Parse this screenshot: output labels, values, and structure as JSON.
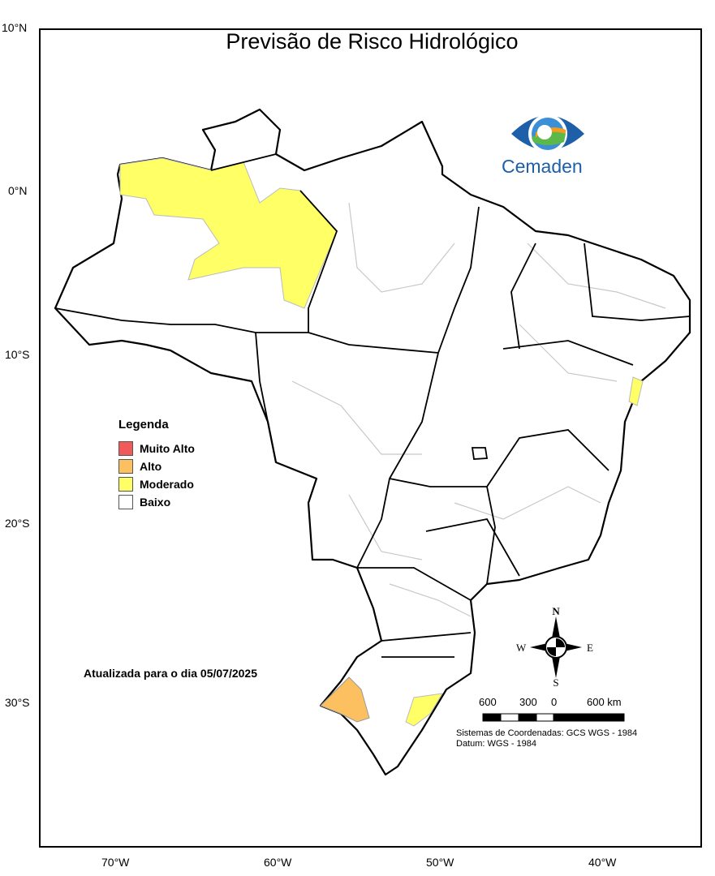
{
  "title": "Previsão de Risco Hidrológico",
  "logo": {
    "text": "Cemaden",
    "color": "#1d5fa8"
  },
  "axes": {
    "latitude_ticks": [
      "10°N",
      "0°N",
      "10°S",
      "20°S",
      "30°S"
    ],
    "longitude_ticks": [
      "70°W",
      "60°W",
      "50°W",
      "40°W"
    ]
  },
  "legend": {
    "title": "Legenda",
    "items": [
      {
        "label": "Muito Alto",
        "color": "#f25a5a"
      },
      {
        "label": "Alto",
        "color": "#fcc060"
      },
      {
        "label": "Moderado",
        "color": "#ffff66"
      },
      {
        "label": "Baixo",
        "color": "#ffffff"
      }
    ]
  },
  "updated": "Atualizada para o dia 05/07/2025",
  "compass": {
    "n": "N",
    "s": "S",
    "e": "E",
    "w": "W"
  },
  "scale": {
    "labels": [
      "600",
      "300",
      "0",
      "600 km"
    ]
  },
  "coordinate_system": "Sistemas de Coordenadas: GCS WGS - 1984",
  "datum": "Datum: WGS - 1984",
  "risk_areas": [
    {
      "region": "Amazonas",
      "level": "Moderado"
    },
    {
      "region": "Bahia",
      "level": "Moderado"
    },
    {
      "region": "Rio Grande do Sul oeste",
      "level": "Alto"
    },
    {
      "region": "Rio Grande do Sul leste",
      "level": "Moderado"
    }
  ]
}
